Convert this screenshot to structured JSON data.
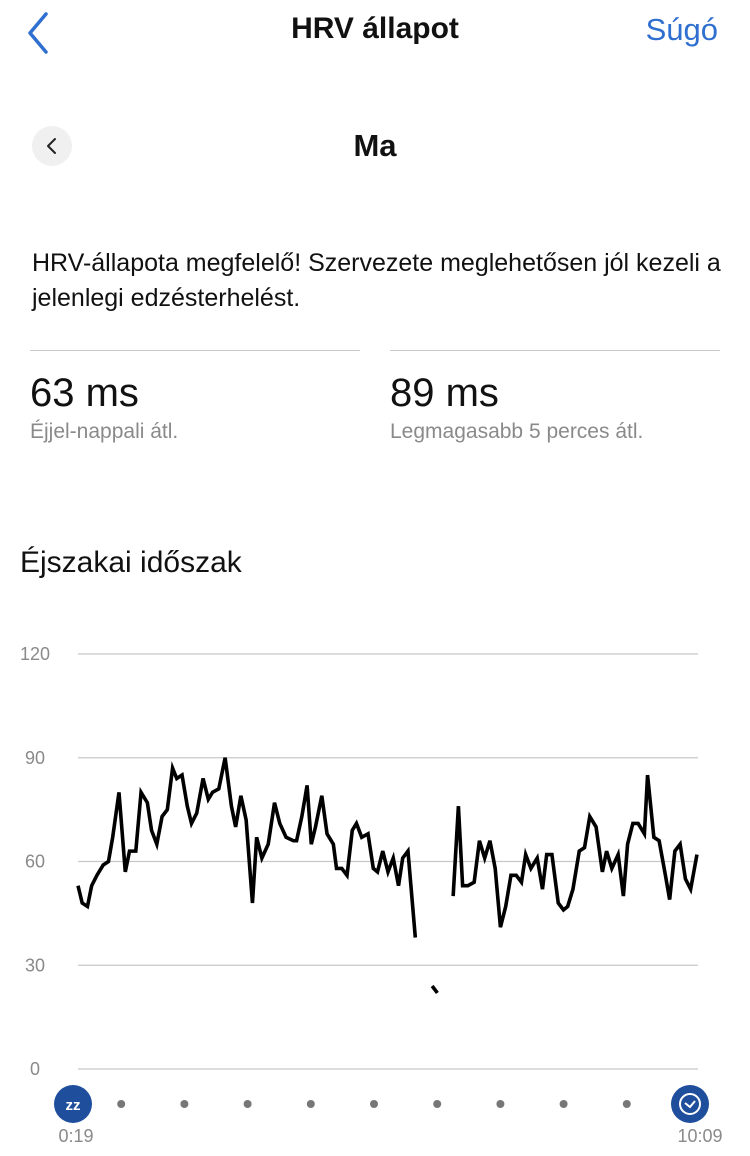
{
  "header": {
    "title": "HRV állapot",
    "help_label": "Súgó",
    "back_icon": "chevron-left-icon"
  },
  "date_nav": {
    "label": "Ma",
    "prev_icon": "chevron-left-icon"
  },
  "message": "HRV-állapota megfelelő! Szervezete meglehetősen jól kezeli a jelenlegi edzésterhelést.",
  "stats": [
    {
      "value": "63 ms",
      "label": "Éjjel-nappali átl."
    },
    {
      "value": "89 ms",
      "label": "Legmagasabb 5 perces átl."
    }
  ],
  "section_title": "Éjszakai időszak",
  "colors": {
    "accent": "#2f6fd0",
    "marker": "#1f4e9c",
    "line": "#000000",
    "grid": "#c8c8c8"
  },
  "chart_data": {
    "type": "line",
    "ylim": [
      0,
      120
    ],
    "yticks": [
      0,
      30,
      60,
      90,
      120
    ],
    "grid": true,
    "x_start": "0:19",
    "x_end": "10:09",
    "start_icon": "sleep-zz-icon",
    "end_icon": "clock-icon",
    "segments": [
      [
        [
          "0:19",
          53
        ],
        [
          "0:23",
          48
        ],
        [
          "0:28",
          47
        ],
        [
          "0:32",
          53
        ],
        [
          "0:37",
          56
        ],
        [
          "0:43",
          59
        ],
        [
          "0:48",
          60
        ],
        [
          "0:52",
          67
        ],
        [
          "0:58",
          80
        ],
        [
          "1:04",
          57
        ],
        [
          "1:08",
          63
        ],
        [
          "1:14",
          63
        ],
        [
          "1:19",
          80
        ],
        [
          "1:25",
          77
        ],
        [
          "1:29",
          69
        ],
        [
          "1:34",
          65
        ],
        [
          "1:39",
          73
        ],
        [
          "1:44",
          75
        ],
        [
          "1:49",
          87
        ],
        [
          "1:53",
          84
        ],
        [
          "1:58",
          85
        ],
        [
          "2:03",
          76
        ],
        [
          "2:07",
          71
        ],
        [
          "2:12",
          74
        ],
        [
          "2:18",
          84
        ],
        [
          "2:23",
          78
        ],
        [
          "2:27",
          80
        ],
        [
          "2:33",
          81
        ],
        [
          "2:39",
          90
        ],
        [
          "2:45",
          76
        ],
        [
          "2:49",
          70
        ],
        [
          "2:54",
          79
        ],
        [
          "2:59",
          72
        ],
        [
          "3:05",
          48
        ],
        [
          "3:09",
          67
        ],
        [
          "3:14",
          61
        ],
        [
          "3:20",
          65
        ],
        [
          "3:26",
          77
        ],
        [
          "3:31",
          71
        ],
        [
          "3:37",
          67
        ],
        [
          "3:44",
          66
        ],
        [
          "3:47",
          66
        ],
        [
          "3:52",
          73
        ],
        [
          "3:57",
          82
        ],
        [
          "4:01",
          65
        ],
        [
          "4:05",
          70
        ],
        [
          "4:11",
          79
        ],
        [
          "4:16",
          68
        ],
        [
          "4:22",
          65
        ],
        [
          "4:25",
          58
        ],
        [
          "4:30",
          58
        ],
        [
          "4:35",
          56
        ],
        [
          "4:40",
          69
        ],
        [
          "4:44",
          71
        ],
        [
          "4:49",
          67
        ],
        [
          "4:55",
          68
        ],
        [
          "5:00",
          58
        ],
        [
          "5:04",
          57
        ],
        [
          "5:09",
          63
        ],
        [
          "5:14",
          57
        ],
        [
          "5:19",
          61
        ],
        [
          "5:24",
          53
        ],
        [
          "5:28",
          61
        ],
        [
          "5:33",
          63
        ],
        [
          "5:40",
          38
        ]
      ],
      [
        [
          "5:56",
          24
        ],
        [
          "6:01",
          22
        ]
      ],
      [
        [
          "6:16",
          50
        ],
        [
          "6:21",
          76
        ],
        [
          "6:25",
          53
        ],
        [
          "6:30",
          53
        ],
        [
          "6:36",
          54
        ],
        [
          "6:41",
          66
        ],
        [
          "6:46",
          61
        ],
        [
          "6:51",
          66
        ],
        [
          "6:56",
          58
        ],
        [
          "7:01",
          41
        ],
        [
          "7:06",
          47
        ],
        [
          "7:11",
          56
        ],
        [
          "7:16",
          56
        ],
        [
          "7:21",
          54
        ],
        [
          "7:25",
          62
        ],
        [
          "7:30",
          58
        ],
        [
          "7:36",
          61
        ],
        [
          "7:41",
          52
        ],
        [
          "7:45",
          62
        ],
        [
          "7:50",
          62
        ],
        [
          "7:56",
          48
        ],
        [
          "8:01",
          46
        ],
        [
          "8:05",
          47
        ],
        [
          "8:10",
          52
        ],
        [
          "8:16",
          63
        ],
        [
          "8:21",
          64
        ],
        [
          "8:26",
          73
        ],
        [
          "8:32",
          70
        ],
        [
          "8:38",
          57
        ],
        [
          "8:42",
          63
        ],
        [
          "8:47",
          58
        ],
        [
          "8:53",
          62
        ],
        [
          "8:58",
          50
        ],
        [
          "9:02",
          65
        ],
        [
          "9:07",
          71
        ],
        [
          "9:12",
          71
        ],
        [
          "9:18",
          68
        ],
        [
          "9:21",
          85
        ],
        [
          "9:27",
          67
        ],
        [
          "9:32",
          66
        ],
        [
          "9:38",
          56
        ],
        [
          "9:42",
          49
        ],
        [
          "9:47",
          63
        ],
        [
          "9:52",
          65
        ],
        [
          "9:57",
          55
        ],
        [
          "10:02",
          52
        ],
        [
          "10:08",
          62
        ]
      ]
    ]
  }
}
